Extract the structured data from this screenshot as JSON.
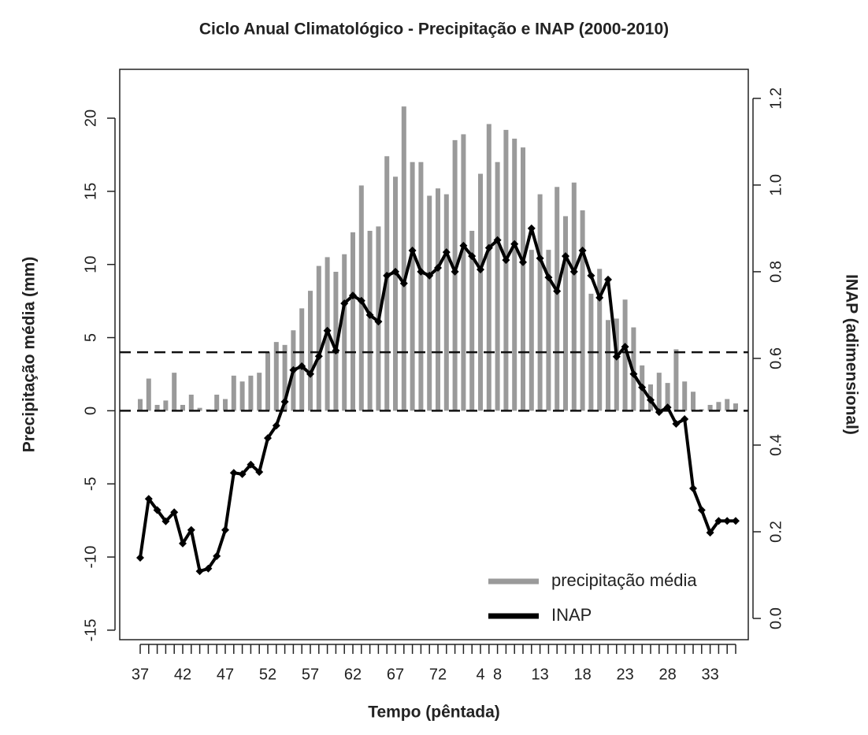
{
  "chart_data": {
    "type": "bar_line",
    "title": "Ciclo Anual Climatológico - Precipitação e INAP (2000-2010)",
    "x_label": "Tempo (pêntada)",
    "y_label": "Precipitação média (mm)",
    "y2_label": "INAP (adimensional)",
    "categories": [
      "37",
      null,
      null,
      null,
      null,
      "42",
      null,
      null,
      null,
      null,
      "47",
      null,
      null,
      null,
      null,
      "52",
      null,
      null,
      null,
      null,
      "57",
      null,
      null,
      null,
      null,
      "62",
      null,
      null,
      null,
      null,
      "67",
      null,
      null,
      null,
      null,
      "72",
      null,
      null,
      null,
      null,
      "4",
      null,
      "8",
      null,
      null,
      null,
      null,
      "13",
      null,
      null,
      null,
      null,
      "18",
      null,
      null,
      null,
      null,
      "23",
      null,
      null,
      null,
      null,
      "28",
      null,
      null,
      null,
      null,
      "33",
      null,
      null,
      null
    ],
    "series": [
      {
        "name": "precipitação média",
        "type": "bar",
        "color": "#9a9a9a",
        "values": [
          0.8,
          2.2,
          0.4,
          0.7,
          2.6,
          0.4,
          1.1,
          0.2,
          0.1,
          1.1,
          0.8,
          2.4,
          2.0,
          2.4,
          2.6,
          4.0,
          4.7,
          4.5,
          5.5,
          7.0,
          8.2,
          9.9,
          10.5,
          9.5,
          10.7,
          12.2,
          15.4,
          12.3,
          12.6,
          17.4,
          16.0,
          20.8,
          17.0,
          17.0,
          14.7,
          15.2,
          14.8,
          18.5,
          18.9,
          12.3,
          16.2,
          19.6,
          17.0,
          19.2,
          18.6,
          18.0,
          11.0,
          14.8,
          11.0,
          15.3,
          13.3,
          15.6,
          13.7,
          8.0,
          9.7,
          6.2,
          6.3,
          7.6,
          5.7,
          3.1,
          1.8,
          2.6,
          1.9,
          4.2,
          2.0,
          1.3,
          0.1,
          0.4,
          0.6,
          0.8,
          0.5
        ]
      },
      {
        "name": "INAP",
        "type": "line",
        "axis": "y2",
        "color": "#000000",
        "values": [
          0.14,
          0.276,
          0.25,
          0.224,
          0.245,
          0.173,
          0.204,
          0.109,
          0.115,
          0.144,
          0.204,
          0.336,
          0.333,
          0.355,
          0.338,
          0.416,
          0.445,
          0.5,
          0.573,
          0.582,
          0.564,
          0.605,
          0.664,
          0.618,
          0.727,
          0.745,
          0.733,
          0.7,
          0.685,
          0.791,
          0.8,
          0.773,
          0.849,
          0.8,
          0.791,
          0.809,
          0.845,
          0.8,
          0.86,
          0.836,
          0.805,
          0.855,
          0.873,
          0.827,
          0.864,
          0.822,
          0.9,
          0.831,
          0.787,
          0.755,
          0.836,
          0.8,
          0.849,
          0.791,
          0.74,
          0.782,
          0.604,
          0.627,
          0.564,
          0.533,
          0.504,
          0.476,
          0.487,
          0.449,
          0.46,
          0.3,
          0.25,
          0.198,
          0.225,
          0.225,
          0.225
        ]
      }
    ],
    "hlines": [
      0,
      4
    ],
    "ylim": [
      -15.65,
      23.34
    ],
    "yticks": [
      -15,
      -10,
      -5,
      0,
      5,
      10,
      15,
      20
    ],
    "y2lim": [
      -0.049,
      1.267
    ],
    "y2ticks": [
      {
        "value": 0,
        "label": "0.0"
      },
      0.2,
      0.4,
      0.6,
      0.8,
      {
        "value": 1,
        "label": "1.0"
      },
      1.2
    ],
    "legend": "bottom-right"
  }
}
